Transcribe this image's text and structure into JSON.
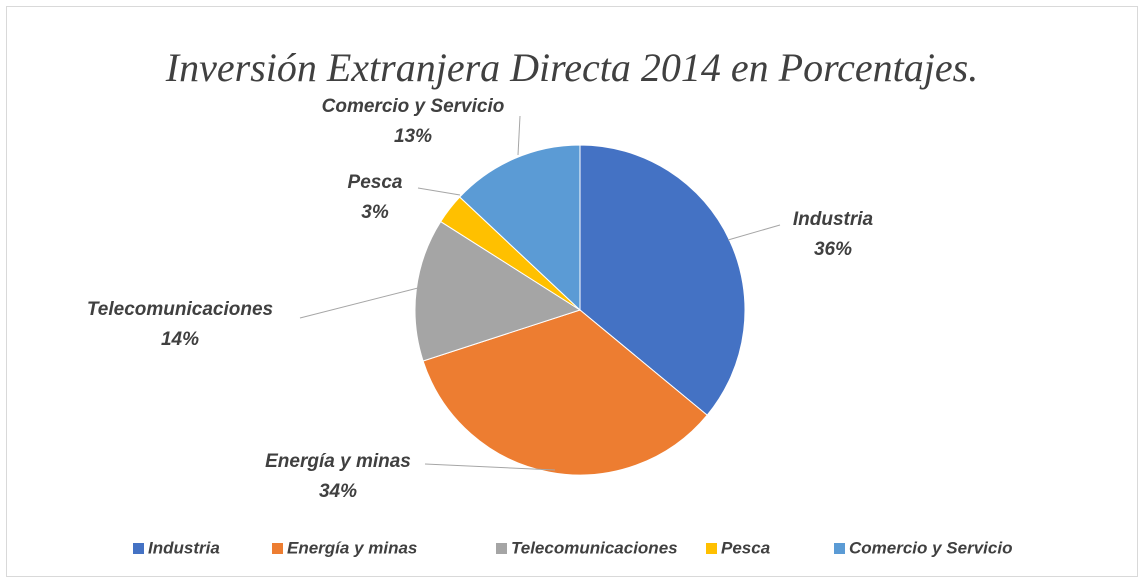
{
  "chart_data": {
    "type": "pie",
    "title": "Inversión Extranjera Directa 2014 en Porcentajes.",
    "categories": [
      "Industria",
      "Energía y minas",
      "Telecomunicaciones",
      "Pesca",
      "Comercio y Servicio"
    ],
    "values": [
      36,
      34,
      14,
      3,
      13
    ],
    "value_labels": [
      "36%",
      "34%",
      "14%",
      "3%",
      "13%"
    ],
    "colors": [
      "#4472c4",
      "#ed7d31",
      "#a5a5a5",
      "#ffc000",
      "#5b9bd5"
    ],
    "legend": "bottom"
  }
}
